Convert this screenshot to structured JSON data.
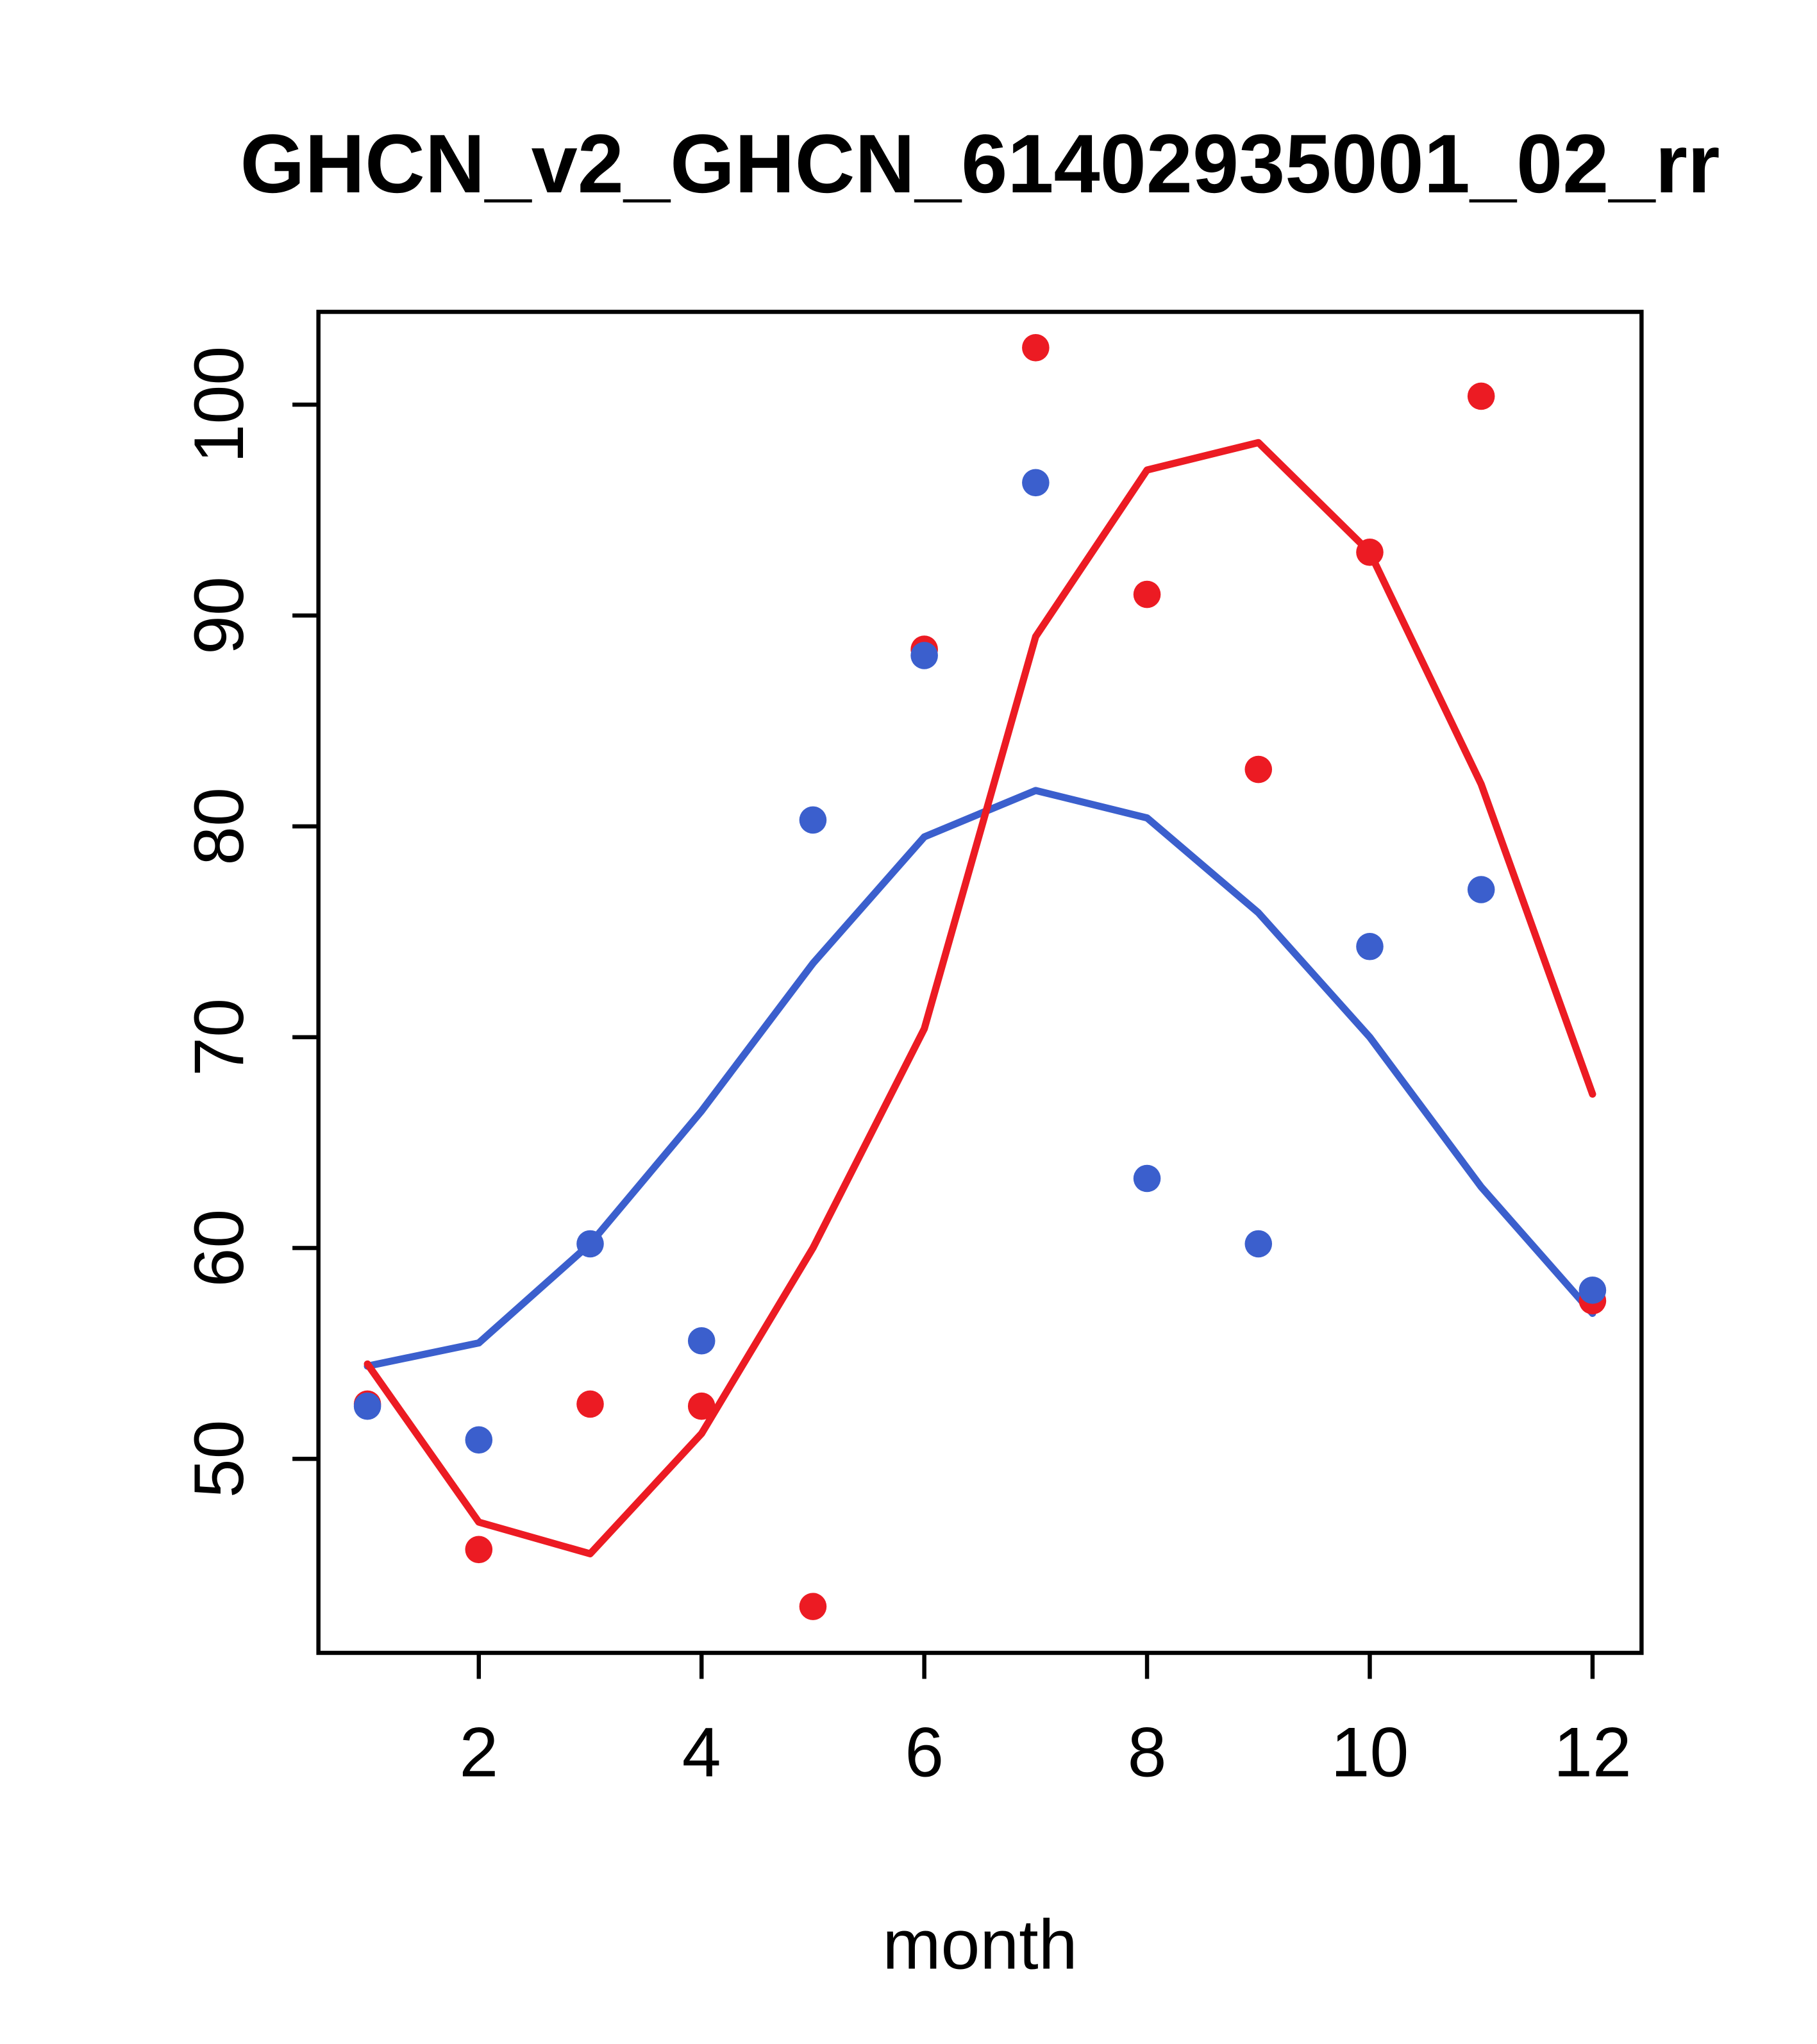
{
  "title": "GHCN_v2_GHCN_61402935001_02_rr",
  "chart_data": {
    "type": "line",
    "title": "GHCN_v2_GHCN_61402935001_02_rr",
    "xlabel": "month",
    "ylabel": "",
    "x": [
      1,
      2,
      3,
      4,
      5,
      6,
      7,
      8,
      9,
      10,
      11,
      12
    ],
    "xticks": [
      2,
      4,
      6,
      8,
      10,
      12
    ],
    "yticks": [
      50,
      60,
      70,
      80,
      90,
      100
    ],
    "xlim": [
      0.56,
      12.44
    ],
    "ylim": [
      40.8,
      104.4
    ],
    "grid": false,
    "legend": "none",
    "colors": {
      "blue": "#3b5fcd",
      "red": "#ec1b23"
    },
    "series": [
      {
        "name": "red-points",
        "style": "points",
        "color_key": "red",
        "values": [
          52.6,
          45.7,
          52.6,
          52.5,
          43.0,
          88.4,
          102.7,
          91.0,
          82.7,
          93.0,
          100.4,
          57.5
        ]
      },
      {
        "name": "blue-points",
        "style": "points",
        "color_key": "blue",
        "values": [
          52.5,
          50.9,
          60.2,
          55.6,
          80.3,
          88.1,
          96.3,
          63.3,
          60.2,
          74.3,
          77.0,
          58.0
        ]
      },
      {
        "name": "blue-smooth-line",
        "style": "line",
        "color_key": "blue",
        "values": [
          54.4,
          55.5,
          60.2,
          66.5,
          73.5,
          79.5,
          81.7,
          80.4,
          75.9,
          70.0,
          62.9,
          56.9
        ]
      },
      {
        "name": "red-smooth-line",
        "style": "line",
        "color_key": "red",
        "values": [
          54.5,
          47.0,
          45.5,
          51.2,
          60.0,
          70.4,
          89.0,
          96.9,
          98.2,
          93.0,
          82.0,
          67.3
        ]
      }
    ]
  }
}
